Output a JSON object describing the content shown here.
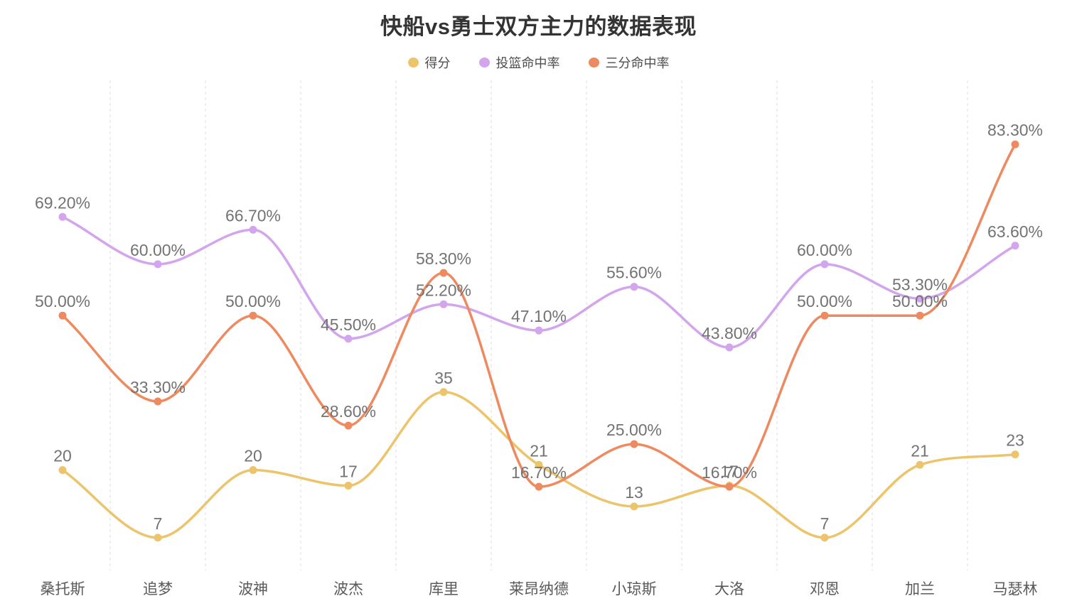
{
  "chart_data": {
    "type": "line",
    "title": "快船vs勇士双方主力的数据表现",
    "categories": [
      "桑托斯",
      "追梦",
      "波神",
      "波杰",
      "库里",
      "莱昂纳德",
      "小琼斯",
      "大洛",
      "邓恩",
      "加兰",
      "马瑟林"
    ],
    "series": [
      {
        "name": "得分",
        "color": "#ecc46b",
        "axis": "points",
        "label_format": "integer",
        "values": [
          20,
          7,
          20,
          17,
          35,
          21,
          13,
          17,
          7,
          21,
          23
        ]
      },
      {
        "name": "投篮命中率",
        "color": "#d2a5ec",
        "axis": "percent",
        "label_format": "percent",
        "values": [
          69.2,
          60.0,
          66.7,
          45.5,
          52.2,
          47.1,
          55.6,
          43.8,
          60.0,
          53.3,
          63.6
        ]
      },
      {
        "name": "三分命中率",
        "color": "#ee8a60",
        "axis": "percent",
        "label_format": "percent",
        "values": [
          50.0,
          33.3,
          50.0,
          28.6,
          58.3,
          16.7,
          25.0,
          16.7,
          50.0,
          50.0,
          83.3
        ]
      }
    ],
    "legend_position": "top",
    "grid": "vertical-dashed",
    "smooth": true,
    "data_labels_shown": true,
    "percent_axis_range": [
      0,
      100
    ],
    "points_axis_range_estimated": [
      0,
      95
    ],
    "y_axis_tick_labels_visible": false,
    "colors": {
      "title_text": "#333333",
      "legend_text": "#4d4d4d",
      "data_label_text": "#737373",
      "x_axis_label_text": "#5a5a5a",
      "grid_line": "#dcdcdc",
      "background": "#ffffff"
    }
  }
}
